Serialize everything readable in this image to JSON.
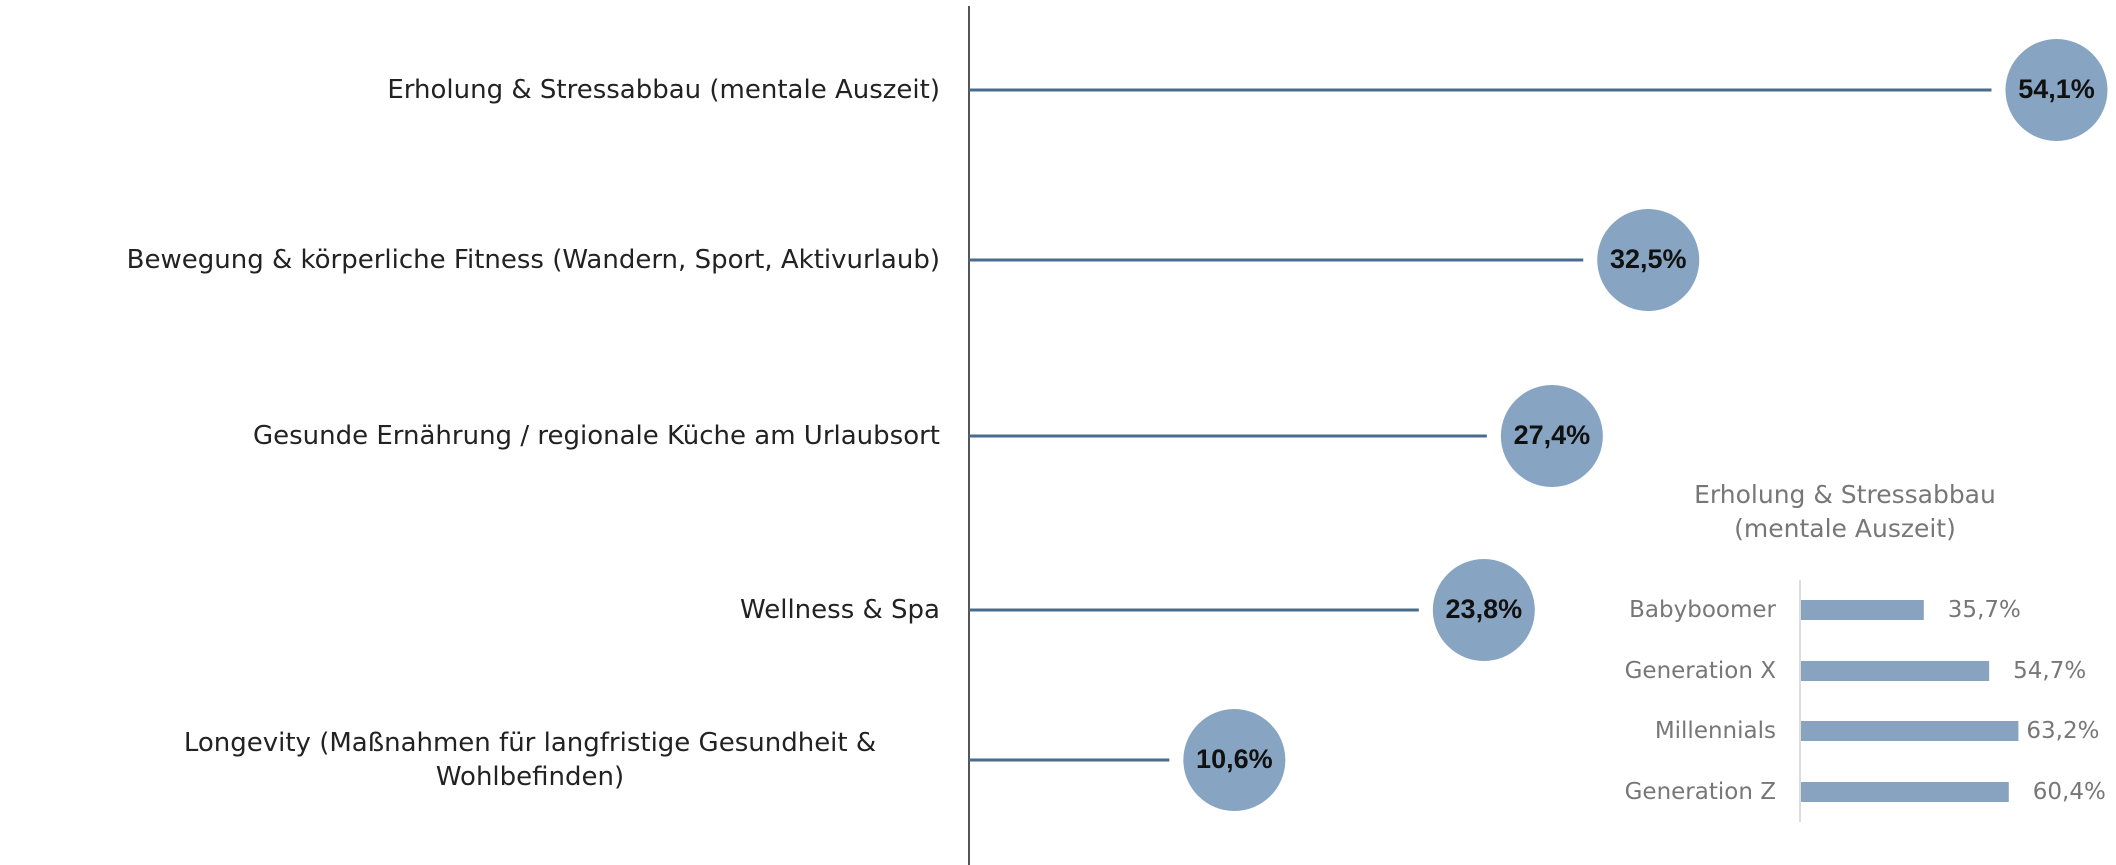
{
  "chart_data": [
    {
      "type": "lollipop",
      "categories": [
        "Erholung & Stressabbau (mentale Auszeit)",
        "Bewegung & körperliche Fitness (Wandern, Sport, Aktivurlaub)",
        "Gesunde Ernährung / regionale Küche am Urlaubsort",
        "Wellness & Spa",
        "Longevity (Maßnahmen für langfristige Gesundheit & Wohlbefinden)"
      ],
      "values": [
        54.1,
        32.5,
        27.4,
        23.8,
        10.6
      ],
      "value_labels": [
        "54,1%",
        "32,5%",
        "27,4%",
        "23,8%",
        "10,6%"
      ],
      "color": "#4a6b8c",
      "marker_color": "#87a5c2"
    },
    {
      "type": "bar",
      "title": "Erholung & Stressabbau (mentale Auszeit)",
      "categories": [
        "Babyboomer",
        "Generation X",
        "Millennials",
        "Generation Z"
      ],
      "values": [
        35.7,
        54.7,
        63.2,
        60.4
      ],
      "value_labels": [
        "35,7%",
        "54,7%",
        "63,2%",
        "60,4%"
      ],
      "color": "#87a3c0"
    }
  ]
}
